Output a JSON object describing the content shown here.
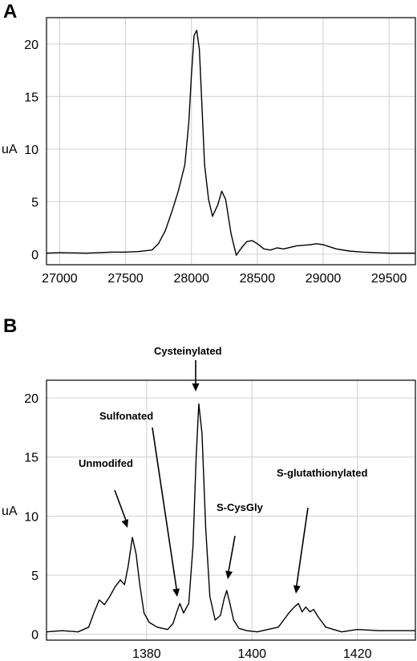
{
  "chart_data": [
    {
      "panel": "A",
      "type": "line",
      "ylabel": "uA",
      "xlim": [
        26900,
        29700
      ],
      "ylim": [
        -1,
        22.5
      ],
      "xticks": [
        27000,
        27500,
        28000,
        28500,
        29000,
        29500
      ],
      "yticks": [
        0,
        5,
        10,
        15,
        20
      ],
      "grid": true,
      "x": [
        26900,
        27000,
        27200,
        27400,
        27500,
        27600,
        27700,
        27750,
        27800,
        27850,
        27900,
        27950,
        27980,
        28000,
        28020,
        28040,
        28060,
        28080,
        28100,
        28130,
        28160,
        28200,
        28230,
        28260,
        28300,
        28340,
        28380,
        28420,
        28460,
        28500,
        28550,
        28600,
        28650,
        28700,
        28800,
        28900,
        28950,
        29000,
        29100,
        29200,
        29300,
        29400,
        29500,
        29600,
        29700
      ],
      "y": [
        0.1,
        0.15,
        0.1,
        0.2,
        0.2,
        0.25,
        0.4,
        1.0,
        2.2,
        4.0,
        6.0,
        8.5,
        12.5,
        17,
        20.8,
        21.3,
        19.5,
        14,
        8.5,
        5.2,
        3.6,
        4.7,
        6.0,
        5.2,
        2.0,
        -0.1,
        0.6,
        1.2,
        1.3,
        1.0,
        0.5,
        0.4,
        0.6,
        0.5,
        0.8,
        0.9,
        1.0,
        0.9,
        0.5,
        0.3,
        0.2,
        0.15,
        0.1,
        0.1,
        0.1
      ]
    },
    {
      "panel": "B",
      "type": "line",
      "ylabel": "uA",
      "xlim": [
        1361,
        1431
      ],
      "ylim": [
        -0.5,
        21.5
      ],
      "xticks": [
        1380,
        1400,
        1420
      ],
      "yticks": [
        0,
        5,
        10,
        15,
        20
      ],
      "grid": true,
      "x": [
        1361,
        1364,
        1367,
        1369,
        1370,
        1371,
        1372,
        1373,
        1374,
        1375,
        1375.8,
        1376.5,
        1377.3,
        1378,
        1378.7,
        1379.5,
        1380.5,
        1382,
        1384,
        1385,
        1385.8,
        1386.3,
        1387,
        1388,
        1388.8,
        1389.4,
        1389.9,
        1390.5,
        1391.2,
        1392,
        1393,
        1394,
        1394.7,
        1395.2,
        1395.8,
        1396.5,
        1397.5,
        1399,
        1401,
        1403,
        1405,
        1406,
        1407,
        1408,
        1408.8,
        1409.5,
        1410.2,
        1411,
        1411.7,
        1412.5,
        1414,
        1417,
        1420,
        1424,
        1428,
        1431
      ],
      "y": [
        0.2,
        0.3,
        0.2,
        0.6,
        1.8,
        2.9,
        2.5,
        3.2,
        4.0,
        4.6,
        4.2,
        5.8,
        8.2,
        6.8,
        4.2,
        1.8,
        1.0,
        0.6,
        0.4,
        0.9,
        2.0,
        2.6,
        1.8,
        2.6,
        7.5,
        15,
        19.5,
        17,
        9,
        3.2,
        1.2,
        1.6,
        3.0,
        3.7,
        2.6,
        1.2,
        0.5,
        0.3,
        0.2,
        0.4,
        0.6,
        1.2,
        1.8,
        2.3,
        2.6,
        1.9,
        2.3,
        1.9,
        2.1,
        1.5,
        0.6,
        0.2,
        0.4,
        0.3,
        0.3,
        0.3
      ],
      "annotations": [
        {
          "label": "Cysteinylated",
          "x": 1389.9,
          "y": 19.5
        },
        {
          "label": "Sulfonated",
          "x": 1386.3,
          "y": 2.6
        },
        {
          "label": "Unmodifed",
          "x": 1377.3,
          "y": 8.2
        },
        {
          "label": "S-CysGly",
          "x": 1395.2,
          "y": 3.7
        },
        {
          "label": "S-glutathionylated",
          "x": 1408.8,
          "y": 2.6
        }
      ]
    }
  ]
}
